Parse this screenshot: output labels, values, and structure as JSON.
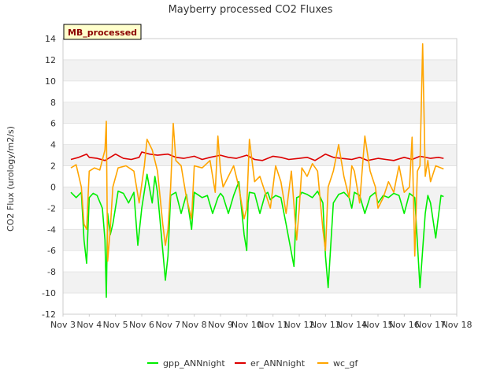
{
  "chart_data": {
    "type": "line",
    "title": "Mayberry processed CO2 Fluxes",
    "xlabel": "",
    "ylabel": "CO2 Flux (urology/m2/s)",
    "badge": "MB_processed",
    "xlim": [
      3,
      18
    ],
    "ylim": [
      -12,
      14
    ],
    "x_ticks": [
      {
        "value": 3,
        "label": "Nov 3"
      },
      {
        "value": 4,
        "label": "Nov 4"
      },
      {
        "value": 5,
        "label": "Nov 5"
      },
      {
        "value": 6,
        "label": "Nov 6"
      },
      {
        "value": 7,
        "label": "Nov 7"
      },
      {
        "value": 8,
        "label": "Nov 8"
      },
      {
        "value": 9,
        "label": "Nov 9"
      },
      {
        "value": 10,
        "label": "Nov 10"
      },
      {
        "value": 11,
        "label": "Nov 11"
      },
      {
        "value": 12,
        "label": "Nov 12"
      },
      {
        "value": 13,
        "label": "Nov 13"
      },
      {
        "value": 14,
        "label": "Nov 14"
      },
      {
        "value": 15,
        "label": "Nov 15"
      },
      {
        "value": 16,
        "label": "Nov 16"
      },
      {
        "value": 17,
        "label": "Nov 17"
      },
      {
        "value": 18,
        "label": "Nov 18"
      }
    ],
    "y_ticks": [
      -12,
      -10,
      -8,
      -6,
      -4,
      -2,
      0,
      2,
      4,
      6,
      8,
      10,
      12,
      14
    ],
    "grid": true,
    "legend_position": "bottom",
    "series": [
      {
        "name": "gpp_ANNnight",
        "color": "#00ee00",
        "x": [
          3.3,
          3.5,
          3.7,
          3.8,
          3.9,
          4.0,
          4.15,
          4.3,
          4.5,
          4.6,
          4.65,
          4.7,
          4.8,
          4.9,
          5.1,
          5.3,
          5.5,
          5.7,
          5.85,
          6.0,
          6.2,
          6.4,
          6.5,
          6.6,
          6.8,
          6.9,
          7.0,
          7.1,
          7.3,
          7.5,
          7.7,
          7.9,
          8.0,
          8.3,
          8.5,
          8.7,
          8.9,
          9.0,
          9.1,
          9.3,
          9.5,
          9.7,
          9.9,
          10.0,
          10.05,
          10.1,
          10.3,
          10.5,
          10.7,
          10.8,
          10.9,
          11.1,
          11.3,
          11.5,
          11.8,
          11.9,
          12.0,
          12.1,
          12.3,
          12.5,
          12.7,
          12.9,
          13.0,
          13.1,
          13.3,
          13.5,
          13.7,
          13.9,
          14.0,
          14.1,
          14.3,
          14.5,
          14.7,
          14.9,
          15.0,
          15.2,
          15.4,
          15.6,
          15.8,
          16.0,
          16.2,
          16.4,
          16.6,
          16.8,
          16.9,
          17.0,
          17.2,
          17.4,
          17.5
        ],
        "values": [
          -0.5,
          -1.0,
          -0.5,
          -5.0,
          -7.2,
          -1.0,
          -0.6,
          -0.8,
          -2.0,
          -5.0,
          -10.4,
          -2.5,
          -4.5,
          -3.5,
          -0.4,
          -0.6,
          -1.5,
          -0.5,
          -5.5,
          -2.0,
          1.2,
          -1.5,
          1.0,
          -0.5,
          -6.0,
          -8.8,
          -6.5,
          -0.8,
          -0.5,
          -2.5,
          -0.7,
          -4.0,
          -0.5,
          -1.0,
          -0.8,
          -2.5,
          -1.0,
          -0.6,
          -0.9,
          -2.5,
          -0.8,
          0.5,
          -4.5,
          -6.0,
          -1.5,
          -0.5,
          -0.6,
          -2.5,
          -0.7,
          -0.5,
          -1.2,
          -0.8,
          -1.0,
          -3.5,
          -7.5,
          -1.0,
          -0.9,
          -0.5,
          -0.7,
          -1.0,
          -0.4,
          -1.5,
          -6.5,
          -9.5,
          -1.5,
          -0.7,
          -0.5,
          -1.0,
          -2.0,
          -0.5,
          -0.8,
          -2.5,
          -0.9,
          -0.5,
          -1.5,
          -0.8,
          -1.0,
          -0.6,
          -0.8,
          -2.5,
          -0.6,
          -1.0,
          -9.5,
          -2.5,
          -0.8,
          -1.5,
          -4.8,
          -0.8,
          -0.9
        ]
      },
      {
        "name": "er_ANNnight",
        "color": "#dd0000",
        "x": [
          3.3,
          3.6,
          3.9,
          4.0,
          4.3,
          4.6,
          5.0,
          5.3,
          5.6,
          5.9,
          6.0,
          6.3,
          6.6,
          7.0,
          7.3,
          7.6,
          8.0,
          8.3,
          8.6,
          9.0,
          9.3,
          9.6,
          10.0,
          10.3,
          10.6,
          11.0,
          11.3,
          11.6,
          12.0,
          12.3,
          12.6,
          13.0,
          13.3,
          13.6,
          14.0,
          14.3,
          14.6,
          15.0,
          15.3,
          15.6,
          16.0,
          16.3,
          16.6,
          17.0,
          17.3,
          17.5
        ],
        "values": [
          2.6,
          2.8,
          3.1,
          2.8,
          2.7,
          2.5,
          3.1,
          2.7,
          2.6,
          2.8,
          3.3,
          3.1,
          3.0,
          3.1,
          2.8,
          2.7,
          2.9,
          2.6,
          2.8,
          3.0,
          2.8,
          2.7,
          3.0,
          2.6,
          2.5,
          2.9,
          2.8,
          2.6,
          2.7,
          2.8,
          2.5,
          3.1,
          2.8,
          2.7,
          2.6,
          2.8,
          2.5,
          2.7,
          2.6,
          2.5,
          2.8,
          2.6,
          2.9,
          2.7,
          2.8,
          2.7
        ]
      },
      {
        "name": "wc_gf",
        "color": "#ffa500",
        "x": [
          3.3,
          3.5,
          3.7,
          3.8,
          3.9,
          4.0,
          4.2,
          4.4,
          4.6,
          4.65,
          4.7,
          4.8,
          4.9,
          5.1,
          5.4,
          5.7,
          5.9,
          6.1,
          6.2,
          6.4,
          6.6,
          6.8,
          6.9,
          7.0,
          7.1,
          7.2,
          7.3,
          7.5,
          7.7,
          7.9,
          8.0,
          8.3,
          8.6,
          8.8,
          8.9,
          9.0,
          9.1,
          9.3,
          9.5,
          9.7,
          9.9,
          10.0,
          10.1,
          10.3,
          10.5,
          10.7,
          10.9,
          11.1,
          11.3,
          11.5,
          11.7,
          11.9,
          12.0,
          12.1,
          12.3,
          12.5,
          12.7,
          12.9,
          13.0,
          13.1,
          13.3,
          13.5,
          13.7,
          13.9,
          14.0,
          14.1,
          14.3,
          14.5,
          14.7,
          14.9,
          15.0,
          15.2,
          15.4,
          15.6,
          15.8,
          16.0,
          16.2,
          16.3,
          16.4,
          16.5,
          16.6,
          16.7,
          16.8,
          16.9,
          17.0,
          17.2,
          17.4,
          17.5
        ],
        "values": [
          1.8,
          2.1,
          0.0,
          -3.5,
          -4.0,
          1.5,
          1.8,
          1.6,
          3.5,
          6.2,
          -7.0,
          -4.0,
          0.0,
          1.8,
          2.0,
          1.5,
          -1.5,
          2.0,
          4.5,
          3.5,
          1.5,
          -3.5,
          -5.5,
          -4.0,
          0.0,
          6.0,
          2.5,
          2.0,
          -1.0,
          -3.0,
          2.0,
          1.8,
          2.5,
          -0.5,
          4.8,
          1.5,
          0.0,
          1.0,
          2.0,
          0.0,
          -3.0,
          -2.0,
          4.5,
          0.5,
          1.0,
          -0.5,
          -2.0,
          2.0,
          0.5,
          -2.5,
          1.5,
          -5.0,
          -2.0,
          1.8,
          1.0,
          2.2,
          1.5,
          -4.0,
          -6.0,
          0.0,
          1.5,
          4.0,
          1.0,
          -1.0,
          2.0,
          1.5,
          -1.5,
          4.8,
          1.5,
          0.0,
          -2.0,
          -1.0,
          0.5,
          -0.5,
          2.0,
          -0.5,
          0.0,
          4.7,
          -6.5,
          1.5,
          2.0,
          13.5,
          1.0,
          2.5,
          0.5,
          2.0,
          1.8,
          1.7
        ]
      }
    ]
  }
}
